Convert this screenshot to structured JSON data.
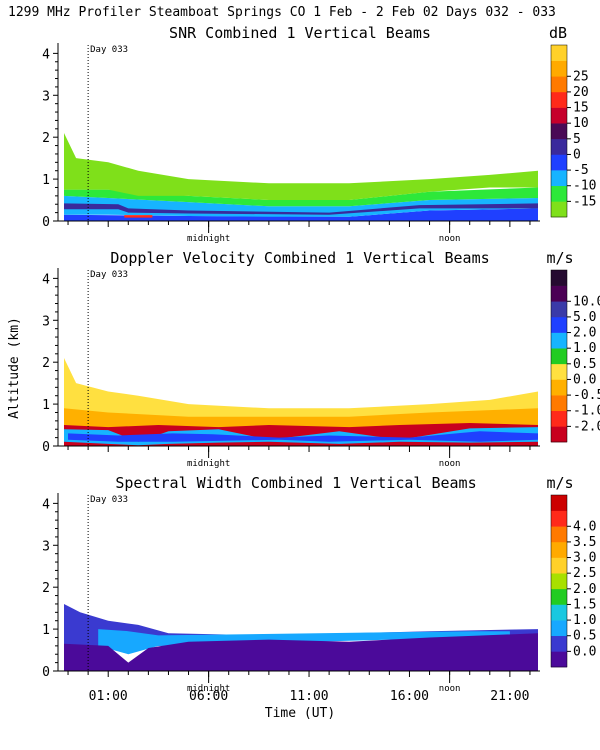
{
  "header": {
    "title": "1299 MHz Profiler  Steamboat Springs CO   1 Feb -  2 Feb 02 Days 032 - 033"
  },
  "axes_common": {
    "ylabel": "Altitude (km)",
    "xlabel": "Time (UT)",
    "y_ticks": [
      "0",
      "1",
      "2",
      "3",
      "4"
    ],
    "x_ticks": [
      "01:00",
      "06:00",
      "11:00",
      "16:00",
      "21:00"
    ],
    "marker_midnight": "midnight",
    "marker_noon": "noon",
    "day_marker": "Day 033"
  },
  "colors": {
    "snr": [
      "#7fe01a",
      "#2de83a",
      "#17b4ff",
      "#1f40ff",
      "#3a2a9c",
      "#4a0a55",
      "#c6002b",
      "#ff2a1a",
      "#ff7a00",
      "#ffaa00",
      "#ffd12a"
    ],
    "doppler": [
      "#c8001e",
      "#ff2a1a",
      "#ff7a00",
      "#ffb000",
      "#ffe040",
      "#22cc22",
      "#17b4ff",
      "#1f40ff",
      "#3a3aa8",
      "#4b0055",
      "#250a30"
    ],
    "width": [
      "#4b0a9a",
      "#3a3ad0",
      "#17a8ff",
      "#19c8e0",
      "#22cc22",
      "#a8e000",
      "#ffd12a",
      "#ffaa00",
      "#ff7a00",
      "#ff2a1a",
      "#cc0000"
    ]
  },
  "chart_data": [
    {
      "type": "heatmap",
      "title": "SNR Combined 1 Vertical Beams",
      "unit": "dB",
      "xlabel": "Time (UT)",
      "ylabel": "Altitude (km)",
      "xlim": [
        22.5,
        46.5
      ],
      "ylim": [
        0,
        4.2
      ],
      "colorbar_labels": [
        "25",
        "20",
        "15",
        "10",
        "5",
        "0",
        "-5",
        "-10",
        "-15"
      ],
      "layers": [
        {
          "name": "band",
          "color_index": 3,
          "points": [
            [
              22.8,
              0.0,
              0.15
            ],
            [
              29.0,
              0.0,
              0.12
            ],
            [
              37.0,
              0.0,
              0.1
            ],
            [
              41.0,
              0.0,
              0.25
            ],
            [
              46.4,
              0.0,
              0.3
            ]
          ]
        },
        {
          "name": "band",
          "color_index": 2,
          "points": [
            [
              22.8,
              0.15,
              0.6
            ],
            [
              25.0,
              0.15,
              0.55
            ],
            [
              29.0,
              0.12,
              0.45
            ],
            [
              33.0,
              0.1,
              0.35
            ],
            [
              37.0,
              0.1,
              0.35
            ],
            [
              41.0,
              0.25,
              0.5
            ],
            [
              46.4,
              0.3,
              0.55
            ]
          ]
        },
        {
          "name": "band",
          "color_index": 1,
          "points": [
            [
              22.8,
              0.6,
              0.75
            ],
            [
              25.0,
              0.55,
              0.75
            ],
            [
              29.0,
              0.45,
              0.6
            ],
            [
              33.0,
              0.35,
              0.5
            ],
            [
              37.0,
              0.35,
              0.5
            ],
            [
              41.0,
              0.5,
              0.7
            ],
            [
              46.4,
              0.55,
              0.8
            ]
          ]
        },
        {
          "name": "band",
          "color_index": 0,
          "points": [
            [
              22.8,
              0.75,
              2.1
            ],
            [
              23.4,
              0.75,
              1.5
            ],
            [
              25.0,
              0.75,
              1.4
            ],
            [
              26.5,
              0.6,
              1.2
            ],
            [
              29.0,
              0.6,
              1.0
            ],
            [
              33.0,
              0.5,
              0.9
            ],
            [
              37.0,
              0.5,
              0.9
            ],
            [
              41.0,
              0.7,
              1.0
            ],
            [
              44.0,
              0.8,
              1.1
            ],
            [
              46.4,
              0.8,
              1.2
            ]
          ]
        },
        {
          "name": "band",
          "color_index": 4,
          "points": [
            [
              22.8,
              0.28,
              0.42
            ],
            [
              25.5,
              0.28,
              0.4
            ],
            [
              26.0,
              0.2,
              0.3
            ],
            [
              29.0,
              0.18,
              0.25
            ],
            [
              36.0,
              0.15,
              0.2
            ],
            [
              40.5,
              0.3,
              0.38
            ],
            [
              46.4,
              0.3,
              0.42
            ]
          ]
        },
        {
          "name": "band",
          "color_index": 7,
          "points": [
            [
              25.8,
              0.08,
              0.14
            ],
            [
              27.2,
              0.08,
              0.14
            ]
          ]
        }
      ]
    },
    {
      "type": "heatmap",
      "title": "Doppler Velocity Combined 1 Vertical Beams",
      "unit": "m/s",
      "xlabel": "Time (UT)",
      "ylabel": "Altitude (km)",
      "xlim": [
        22.5,
        46.5
      ],
      "ylim": [
        0,
        4.2
      ],
      "colorbar_labels": [
        "10.0",
        "5.0",
        "2.0",
        "1.0",
        "0.5",
        "0.0",
        "-0.5",
        "-1.0",
        "-2.0"
      ],
      "layers": [
        {
          "name": "band",
          "color_index": 4,
          "points": [
            [
              22.8,
              0.0,
              2.1
            ],
            [
              23.4,
              0.0,
              1.5
            ],
            [
              25.0,
              0.0,
              1.3
            ],
            [
              26.5,
              0.0,
              1.2
            ],
            [
              29.0,
              0.0,
              1.0
            ],
            [
              33.0,
              0.0,
              0.9
            ],
            [
              37.0,
              0.0,
              0.9
            ],
            [
              41.0,
              0.0,
              1.0
            ],
            [
              44.0,
              0.0,
              1.1
            ],
            [
              46.4,
              0.0,
              1.3
            ]
          ]
        },
        {
          "name": "band",
          "color_index": 3,
          "points": [
            [
              22.8,
              0.0,
              0.9
            ],
            [
              25.0,
              0.0,
              0.8
            ],
            [
              29.0,
              0.0,
              0.7
            ],
            [
              33.0,
              0.0,
              0.7
            ],
            [
              37.0,
              0.0,
              0.7
            ],
            [
              41.0,
              0.0,
              0.8
            ],
            [
              46.4,
              0.0,
              0.9
            ]
          ]
        },
        {
          "name": "band",
          "color_index": 0,
          "points": [
            [
              22.8,
              0.0,
              0.5
            ],
            [
              25.0,
              0.0,
              0.45
            ],
            [
              27.5,
              0.0,
              0.5
            ],
            [
              30.5,
              0.0,
              0.45
            ],
            [
              33.0,
              0.0,
              0.5
            ],
            [
              37.0,
              0.0,
              0.45
            ],
            [
              39.5,
              0.0,
              0.5
            ],
            [
              43.0,
              0.0,
              0.55
            ],
            [
              46.4,
              0.0,
              0.5
            ]
          ]
        },
        {
          "name": "band",
          "color_index": 6,
          "points": [
            [
              22.8,
              0.1,
              0.4
            ],
            [
              25.0,
              0.05,
              0.38
            ],
            [
              26.5,
              0.02,
              0.1
            ],
            [
              28.0,
              0.05,
              0.35
            ],
            [
              30.5,
              0.08,
              0.4
            ],
            [
              33.0,
              0.1,
              0.15
            ],
            [
              36.5,
              0.05,
              0.35
            ],
            [
              39.5,
              0.1,
              0.15
            ],
            [
              43.0,
              0.08,
              0.42
            ],
            [
              46.4,
              0.1,
              0.45
            ]
          ]
        },
        {
          "name": "band",
          "color_index": 7,
          "points": [
            [
              23.0,
              0.15,
              0.3
            ],
            [
              25.5,
              0.1,
              0.25
            ],
            [
              28.2,
              0.1,
              0.3
            ],
            [
              30.2,
              0.12,
              0.28
            ],
            [
              33.5,
              0.15,
              0.2
            ],
            [
              36.0,
              0.1,
              0.25
            ],
            [
              40.0,
              0.15,
              0.2
            ],
            [
              43.5,
              0.1,
              0.35
            ],
            [
              46.4,
              0.15,
              0.3
            ]
          ]
        }
      ]
    },
    {
      "type": "heatmap",
      "title": "Spectral Width Combined 1 Vertical Beams",
      "unit": "m/s",
      "xlabel": "Time (UT)",
      "ylabel": "Altitude (km)",
      "xlim": [
        22.5,
        46.5
      ],
      "ylim": [
        0,
        4.2
      ],
      "colorbar_labels": [
        "4.0",
        "3.5",
        "3.0",
        "2.5",
        "2.0",
        "1.5",
        "1.0",
        "0.5",
        "0.0"
      ],
      "layers": [
        {
          "name": "band",
          "color_index": 1,
          "points": [
            [
              22.8,
              0.6,
              1.6
            ],
            [
              23.6,
              0.6,
              1.4
            ],
            [
              25.0,
              0.6,
              1.2
            ],
            [
              26.5,
              0.6,
              1.1
            ],
            [
              28.0,
              0.6,
              0.9
            ],
            [
              33.0,
              0.7,
              0.85
            ],
            [
              37.0,
              0.75,
              0.9
            ],
            [
              41.0,
              0.8,
              0.95
            ],
            [
              46.4,
              0.8,
              1.0
            ]
          ]
        },
        {
          "name": "band",
          "color_index": 2,
          "points": [
            [
              24.5,
              0.6,
              1.0
            ],
            [
              26.0,
              0.4,
              0.95
            ],
            [
              27.5,
              0.6,
              0.85
            ],
            [
              43.0,
              0.8,
              0.95
            ],
            [
              45.0,
              0.8,
              0.95
            ]
          ]
        },
        {
          "name": "band",
          "color_index": 0,
          "points": [
            [
              22.8,
              0.0,
              0.65
            ],
            [
              25.0,
              0.0,
              0.6
            ],
            [
              26.0,
              0.0,
              0.2
            ],
            [
              27.0,
              0.0,
              0.55
            ],
            [
              29.0,
              0.0,
              0.7
            ],
            [
              33.0,
              0.0,
              0.75
            ],
            [
              37.0,
              0.0,
              0.7
            ],
            [
              41.0,
              0.0,
              0.8
            ],
            [
              46.4,
              0.0,
              0.9
            ]
          ]
        }
      ]
    }
  ]
}
